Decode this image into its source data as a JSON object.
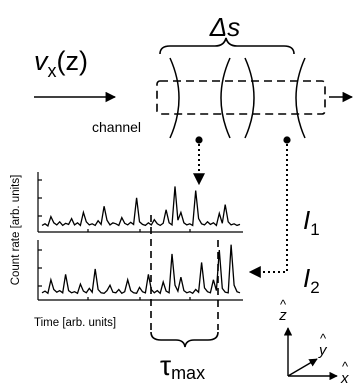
{
  "labels": {
    "velocity_base": "v",
    "velocity_sub": "x",
    "velocity_arg": "(z)",
    "delta_s": "Δs",
    "channel": "channel",
    "y_axis": "Count rate [arb. units]",
    "x_axis": "Time [arb. units]",
    "tau": "τ",
    "tau_sub": "max",
    "i1_base": "I",
    "i1_sub": "1",
    "i2_base": "I",
    "i2_sub": "2",
    "axis_z": "z",
    "axis_y": "y",
    "axis_x": "x",
    "hat": "^"
  },
  "traces": {
    "trace1": [
      0.05,
      0.08,
      0.04,
      0.22,
      0.1,
      0.06,
      0.12,
      0.05,
      0.09,
      0.07,
      0.18,
      0.06,
      0.1,
      0.05,
      0.3,
      0.12,
      0.06,
      0.08,
      0.05,
      0.14,
      0.07,
      0.42,
      0.15,
      0.06,
      0.1,
      0.08,
      0.05,
      0.2,
      0.09,
      0.06,
      0.11,
      0.07,
      0.58,
      0.12,
      0.07,
      0.05,
      0.1,
      0.06,
      0.16,
      0.08,
      0.05,
      0.09,
      0.35,
      0.1,
      0.06,
      0.8,
      0.15,
      0.3,
      0.1,
      0.06,
      0.08,
      0.05,
      0.72,
      0.18,
      0.08,
      0.06,
      0.12,
      0.07,
      0.1,
      0.05,
      0.28,
      0.09,
      0.45,
      0.12,
      0.06,
      0.08,
      0.05,
      0.07
    ],
    "trace2": [
      0.06,
      0.09,
      0.05,
      0.3,
      0.12,
      0.07,
      0.1,
      0.06,
      0.4,
      0.1,
      0.06,
      0.08,
      0.05,
      0.22,
      0.09,
      0.06,
      0.14,
      0.07,
      0.5,
      0.12,
      0.06,
      0.05,
      0.1,
      0.2,
      0.07,
      0.06,
      0.12,
      0.05,
      0.08,
      0.3,
      0.1,
      0.06,
      0.05,
      0.16,
      0.08,
      0.06,
      0.4,
      0.12,
      0.06,
      0.1,
      0.05,
      0.26,
      0.09,
      0.06,
      0.78,
      0.2,
      0.09,
      0.35,
      0.1,
      0.06,
      0.08,
      0.05,
      0.12,
      0.07,
      0.62,
      0.15,
      0.08,
      0.06,
      0.3,
      0.1,
      0.85,
      0.14,
      0.07,
      0.06,
      0.95,
      0.2,
      0.08,
      0.06
    ]
  }
}
